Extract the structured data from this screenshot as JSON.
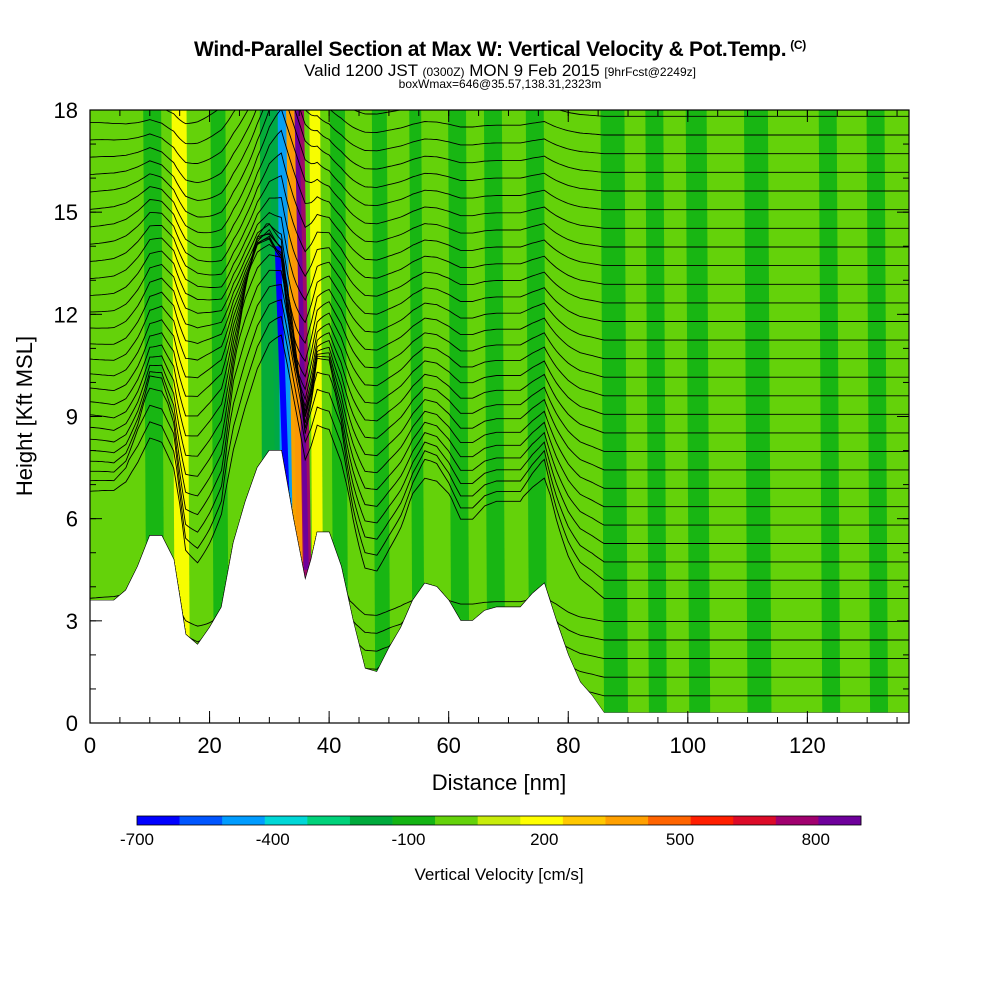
{
  "header": {
    "title": "Wind-Parallel Section at Max W: Vertical Velocity & Pot.Temp.",
    "title_mark": "(C)",
    "valid_prefix": "Valid 1200 JST",
    "valid_utc": "(0300Z)",
    "valid_date": "MON 9 Feb 2015",
    "fcst_info": "[9hrFcst@2249z]",
    "box_info": "boxWmax=646@35.57,138.31,2323m"
  },
  "chart_data": {
    "type": "heatmap",
    "title": "Wind-Parallel Section at Max W: Vertical Velocity & Pot.Temp.",
    "xlabel": "Distance [nm]",
    "ylabel": "Height [Kft MSL]",
    "xlim": [
      0,
      137
    ],
    "ylim": [
      0,
      18
    ],
    "x_ticks": [
      "0",
      "20",
      "40",
      "60",
      "80",
      "100",
      "120"
    ],
    "y_ticks": [
      "0",
      "3",
      "6",
      "9",
      "12",
      "15",
      "18"
    ],
    "x_tick_values": [
      0,
      20,
      40,
      60,
      80,
      100,
      120
    ],
    "y_tick_values": [
      0,
      3,
      6,
      9,
      12,
      15,
      18
    ],
    "colorbar": {
      "label": "Vertical Velocity [cm/s]",
      "tick_labels": [
        "-700",
        "-400",
        "-100",
        "200",
        "500",
        "800"
      ],
      "tick_values": [
        -700,
        -400,
        -100,
        200,
        500,
        800
      ],
      "bin_edges": [
        -700,
        -600,
        -500,
        -400,
        -300,
        -200,
        -100,
        0,
        100,
        200,
        300,
        400,
        500,
        600,
        700,
        800,
        900
      ],
      "colors": [
        "#0000ff",
        "#0055ff",
        "#009cff",
        "#00d7d7",
        "#00d27a",
        "#00aa3c",
        "#14b414",
        "#64d20a",
        "#c8ec0a",
        "#ffff00",
        "#ffc800",
        "#ffa000",
        "#ff6400",
        "#ff1e00",
        "#dc0a28",
        "#a0006e",
        "#6e009b"
      ]
    },
    "terrain_profile": {
      "x": [
        0,
        4,
        6,
        8,
        10,
        12,
        14,
        16,
        18,
        20,
        22,
        24,
        26,
        28,
        30,
        32,
        34,
        36,
        37,
        38,
        40,
        42,
        44,
        46,
        48,
        50,
        52,
        54,
        56,
        58,
        60,
        62,
        64,
        66,
        68,
        70,
        72,
        74,
        76,
        78,
        80,
        82,
        84,
        86,
        137
      ],
      "height": [
        3.6,
        3.6,
        3.9,
        4.6,
        5.5,
        5.5,
        4.8,
        2.6,
        2.3,
        2.8,
        3.4,
        5.3,
        6.5,
        7.5,
        8.0,
        8.0,
        6.0,
        4.2,
        4.8,
        5.6,
        5.6,
        4.6,
        3.0,
        1.6,
        1.5,
        2.2,
        2.8,
        3.6,
        4.1,
        4.0,
        3.6,
        3.0,
        3.0,
        3.3,
        3.4,
        3.4,
        3.4,
        3.8,
        4.1,
        3.0,
        2.0,
        1.2,
        0.8,
        0.3,
        0.3
      ],
      "fill": "#ffffff"
    },
    "velocity_features": [
      {
        "x": 36.2,
        "w": 2.4,
        "velocity": 800
      },
      {
        "x": 35.0,
        "w": 2.0,
        "velocity": 400
      },
      {
        "x": 38.2,
        "w": 1.8,
        "velocity": 250
      },
      {
        "x": 33.0,
        "w": 2.8,
        "velocity": -450
      },
      {
        "x": 30.5,
        "w": 3.0,
        "velocity": -150
      },
      {
        "x": 15.5,
        "w": 2.5,
        "velocity": 250
      },
      {
        "x": 11.0,
        "w": 3.0,
        "velocity": -100
      },
      {
        "x": 22.0,
        "w": 2.5,
        "velocity": -100
      },
      {
        "x": 42.0,
        "w": 2.5,
        "velocity": -100
      },
      {
        "x": 49.0,
        "w": 2.5,
        "velocity": -100
      },
      {
        "x": 55.0,
        "w": 2.0,
        "velocity": -100
      },
      {
        "x": 62.0,
        "w": 3.0,
        "velocity": -100
      },
      {
        "x": 68.0,
        "w": 3.0,
        "velocity": -100
      },
      {
        "x": 75.0,
        "w": 3.0,
        "velocity": -100
      },
      {
        "x": 88.0,
        "w": 4.0,
        "velocity": -100
      },
      {
        "x": 95.0,
        "w": 3.0,
        "velocity": -100
      },
      {
        "x": 102.0,
        "w": 3.5,
        "velocity": -100
      },
      {
        "x": 112.0,
        "w": 4.0,
        "velocity": -100
      },
      {
        "x": 124.0,
        "w": 3.0,
        "velocity": -100
      },
      {
        "x": 132.0,
        "w": 3.0,
        "velocity": -100
      }
    ],
    "theta_contours": {
      "spacing_kft": 0.55,
      "base_kft": 0.2,
      "count": 33,
      "color": "#000000"
    }
  }
}
